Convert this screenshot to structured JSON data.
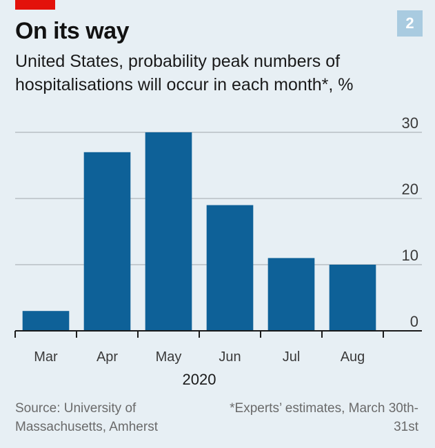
{
  "header": {
    "title": "On its way",
    "subtitle": "United States, probability peak numbers of hospitalisations will occur in each month*, %",
    "badge": "2"
  },
  "colors": {
    "bar": "#0e6198",
    "background": "#e7eff4",
    "brand_red": "#e3120b",
    "gridline": "#b9bfc4",
    "axis": "#1a1a1a"
  },
  "chart_data": {
    "type": "bar",
    "title": "On its way",
    "categories": [
      "Mar",
      "Apr",
      "May",
      "Jun",
      "Jul",
      "Aug"
    ],
    "values": [
      3,
      27,
      30,
      19,
      11,
      10
    ],
    "xlabel": "2020",
    "ylabel": "%",
    "ylim": [
      0,
      30
    ],
    "yticks": [
      0,
      10,
      20,
      30
    ],
    "y_axis_position": "right",
    "grid": true
  },
  "footer": {
    "source": "Source: University of Massachusetts, Amherst",
    "footnote": "*Experts’ estimates, March 30th-31st"
  }
}
